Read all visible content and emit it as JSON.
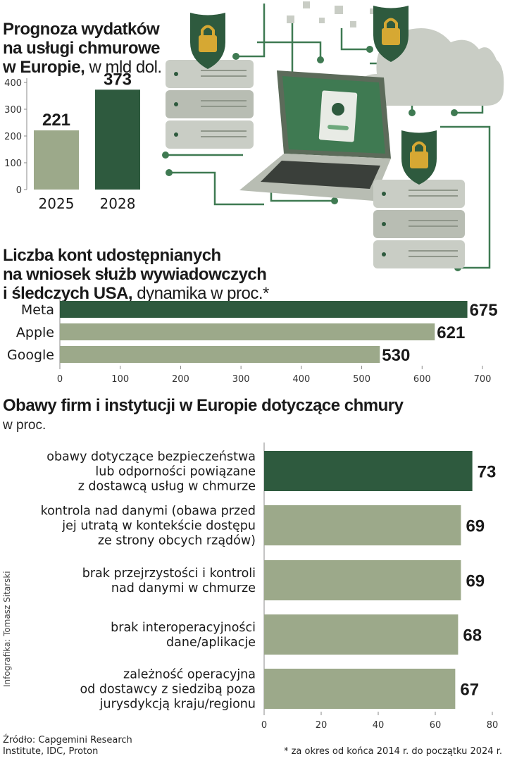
{
  "colors": {
    "dark_green": "#2e5a3e",
    "light_green": "#9ca98a",
    "illustration_grey": "#c9cdc5",
    "illustration_line": "#3f7a52"
  },
  "chart_data": [
    {
      "type": "bar",
      "title_bold": "Prognoza wydatków\nna usługi chmurowe\nw Europie,",
      "title_unit": "w mld dol.",
      "categories": [
        "2025",
        "2028"
      ],
      "values": [
        221,
        373
      ],
      "value_labels": [
        "221",
        "373"
      ],
      "ylim": [
        0,
        400
      ],
      "yticks": [
        "0",
        "100",
        "200",
        "300",
        "400"
      ],
      "highlight_index": 1
    },
    {
      "type": "bar",
      "orientation": "horizontal",
      "title_bold": "Liczba kont udostępnianych\nna wniosek służb wywiadowczych\ni śledczych USA,",
      "title_unit": "dynamika w proc.*",
      "categories": [
        "Meta",
        "Apple",
        "Google"
      ],
      "values": [
        675,
        621,
        530
      ],
      "value_labels": [
        "675",
        "621",
        "530"
      ],
      "xlim": [
        0,
        700
      ],
      "xticks": [
        "0",
        "100",
        "200",
        "300",
        "400",
        "500",
        "600",
        "700"
      ],
      "highlight_index": 0
    },
    {
      "type": "bar",
      "orientation": "horizontal",
      "title": "Obawy firm i instytucji w Europie dotyczące chmury",
      "subtitle": "w proc.",
      "categories": [
        "obawy dotyczące bezpieczeństwa\nlub odporności powiązane\nz dostawcą usług w chmurze",
        "kontrola nad danymi (obawa przed\njej utratą w kontekście dostępu\nze strony obcych rządów)",
        "brak przejrzystości i kontroli\nnad danymi w chmurze",
        "brak interoperacyjności\ndane/aplikacje",
        "zależność operacyjna\nod dostawcy z siedzibą poza\njurysdykcją kraju/regionu"
      ],
      "values": [
        73,
        69,
        69,
        68,
        67
      ],
      "value_labels": [
        "73",
        "69",
        "69",
        "68",
        "67"
      ],
      "xlim": [
        0,
        80
      ],
      "xticks": [
        "0",
        "20",
        "40",
        "60",
        "80"
      ],
      "highlight_index": 0
    }
  ],
  "credit": "Infografika: Tomasz Sitarski",
  "source": "Źródło: Capgemini Research\nInstitute, IDC, Proton",
  "footnote": "* za okres od końca 2014 r. do początku 2024 r."
}
